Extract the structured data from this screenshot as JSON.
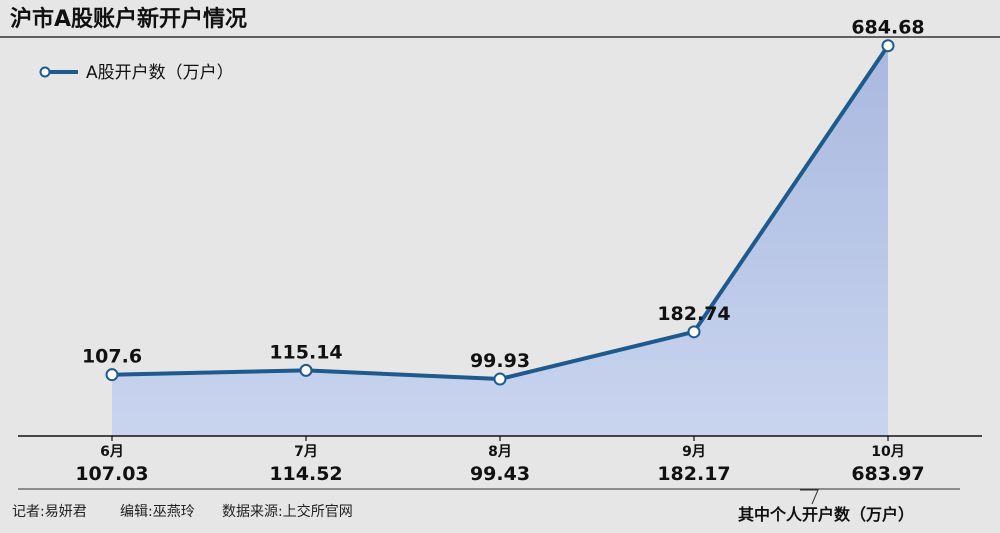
{
  "title": "沪市A股账户新开户情况",
  "legend_label": "A股开户数（万户）",
  "sub_note": "其中个人开户数（万户）",
  "credits": {
    "reporter": "记者:易妍君",
    "editor": "编辑:巫燕玲",
    "source": "数据来源:上交所官网"
  },
  "colors": {
    "line": "#1f5a8e",
    "fill_top": "#a9b8df",
    "fill_bottom": "#c9d5ef",
    "axis": "#111111",
    "background": "#e6e6e6"
  },
  "chart_data": {
    "type": "area",
    "categories": [
      "6月",
      "7月",
      "8月",
      "9月",
      "10月"
    ],
    "series": [
      {
        "name": "A股开户数（万户）",
        "values": [
          107.6,
          115.14,
          99.93,
          182.74,
          684.68
        ]
      },
      {
        "name": "其中个人开户数（万户）",
        "values": [
          107.03,
          114.52,
          99.43,
          182.17,
          683.97
        ]
      }
    ],
    "value_labels": [
      "107.6",
      "115.14",
      "99.93",
      "182.74",
      "684.68"
    ],
    "sub_value_labels": [
      "107.03",
      "114.52",
      "99.43",
      "182.17",
      "683.97"
    ],
    "ylim": [
      0,
      700
    ],
    "grid": false,
    "legend_position": "top-left"
  }
}
